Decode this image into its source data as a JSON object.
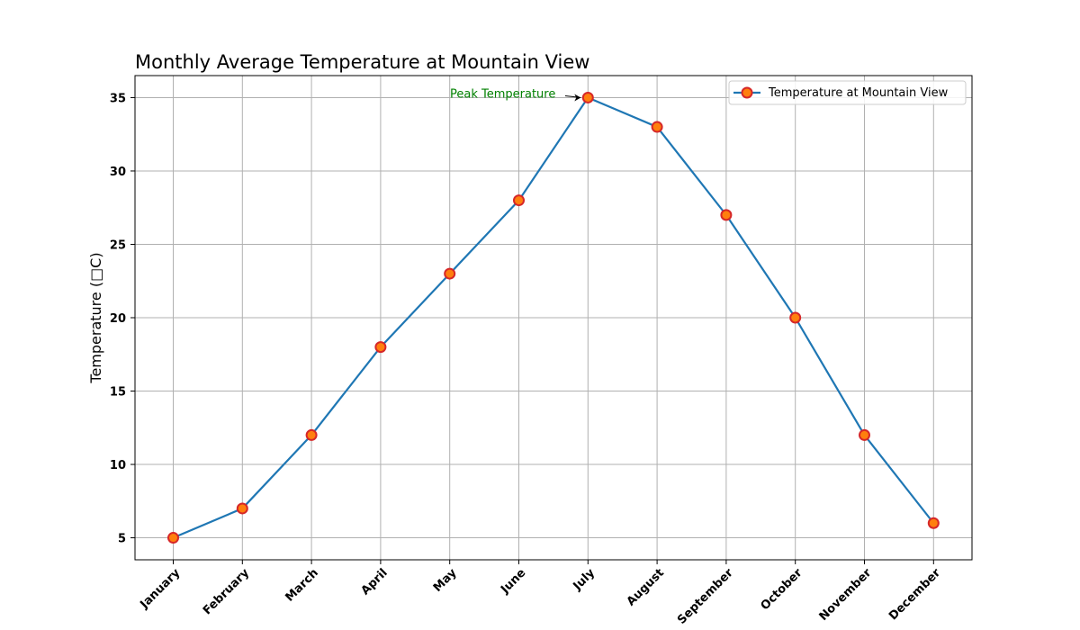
{
  "chart_data": {
    "type": "line",
    "title": "Monthly Average Temperature at Mountain View",
    "xlabel": "",
    "ylabel": "Temperature (□C)",
    "categories": [
      "January",
      "February",
      "March",
      "April",
      "May",
      "June",
      "July",
      "August",
      "September",
      "October",
      "November",
      "December"
    ],
    "series": [
      {
        "name": "Temperature at Mountain View",
        "values": [
          5,
          7,
          12,
          18,
          23,
          28,
          35,
          33,
          27,
          20,
          12,
          6
        ],
        "line_color": "#1f77b4",
        "marker_face": "#ff7f0e",
        "marker_edge": "#d62728"
      }
    ],
    "ylim": [
      3.5,
      36.5
    ],
    "yticks": [
      5,
      10,
      15,
      20,
      25,
      30,
      35
    ],
    "grid": true,
    "legend_position": "top-right",
    "annotations": [
      {
        "text": "Peak Temperature",
        "x": "July",
        "y": 35,
        "color": "#008000"
      }
    ]
  }
}
